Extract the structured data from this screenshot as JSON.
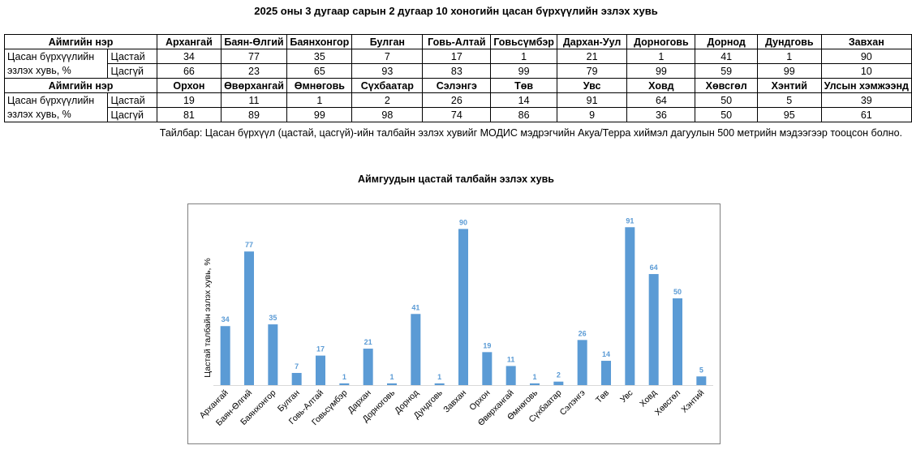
{
  "page_title": "2025 оны 3 дугаар сарын 2 дугаар 10 хоногийн цасан бүрхүүлийн эзлэх хувь",
  "table": {
    "header_label": "Аймгийн нэр",
    "row_label_line1": "Цасан бүрхүүлийн",
    "row_label_line2": "эзлэх хувь, %",
    "snowy_label": "Цастай",
    "snowless_label": "Цасгүй",
    "block1": {
      "names": [
        "Архангай",
        "Баян-Өлгий",
        "Баянхонгор",
        "Булган",
        "Говь-Алтай",
        "Говьсүмбэр",
        "Дархан-Уул",
        "Дорноговь",
        "Дорнод",
        "Дундговь",
        "Завхан"
      ],
      "snowy": [
        "34",
        "77",
        "35",
        "7",
        "17",
        "1",
        "21",
        "1",
        "41",
        "1",
        "90"
      ],
      "snowless": [
        "66",
        "23",
        "65",
        "93",
        "83",
        "99",
        "79",
        "99",
        "59",
        "99",
        "10"
      ]
    },
    "block2": {
      "names": [
        "Орхон",
        "Өвөрхангай",
        "Өмнөговь",
        "Сүхбаатар",
        "Сэлэнгэ",
        "Төв",
        "Увс",
        "Ховд",
        "Хөвсгөл",
        "Хэнтий",
        "Улсын хэмжээнд"
      ],
      "snowy": [
        "19",
        "11",
        "1",
        "2",
        "26",
        "14",
        "91",
        "64",
        "50",
        "5",
        "39"
      ],
      "snowless": [
        "81",
        "89",
        "99",
        "98",
        "74",
        "86",
        "9",
        "36",
        "50",
        "95",
        "61"
      ]
    }
  },
  "note": "Тайлбар: Цасан бүрхүүл (цастай, цасгүй)-ийн талбайн эзлэх хувийг МОДИС мэдрэгчийн Акуа/Терра хиймэл дагуулын 500 метрийн мэдээгээр тооцсон болно.",
  "chart_data": {
    "type": "bar",
    "title": "Аймгуудын цастай талбайн эзлэх хувь",
    "ylabel": "Цастай талбайн эзлэх хувь, %",
    "xlabel": "",
    "ylim": [
      0,
      100
    ],
    "grid": false,
    "legend": "none",
    "bar_color": "#5b9bd5",
    "label_color": "#5b9bd5",
    "categories": [
      "Архангай",
      "Баян-Өлгий",
      "Баянхонгор",
      "Булган",
      "Говь-Алтай",
      "Говьсүмбэр",
      "Дархан",
      "Дорноговь",
      "Дорнод",
      "Дундговь",
      "Завхан",
      "Орхон",
      "Өвөрхангай",
      "Өмнөговь",
      "Сүхбаатар",
      "Сэлэнгэ",
      "Төв",
      "Увс",
      "Ховд",
      "Хөвсгөл",
      "Хэнтий"
    ],
    "values": [
      34,
      77,
      35,
      7,
      17,
      1,
      21,
      1,
      41,
      1,
      90,
      19,
      11,
      1,
      2,
      26,
      14,
      91,
      64,
      50,
      5
    ]
  }
}
